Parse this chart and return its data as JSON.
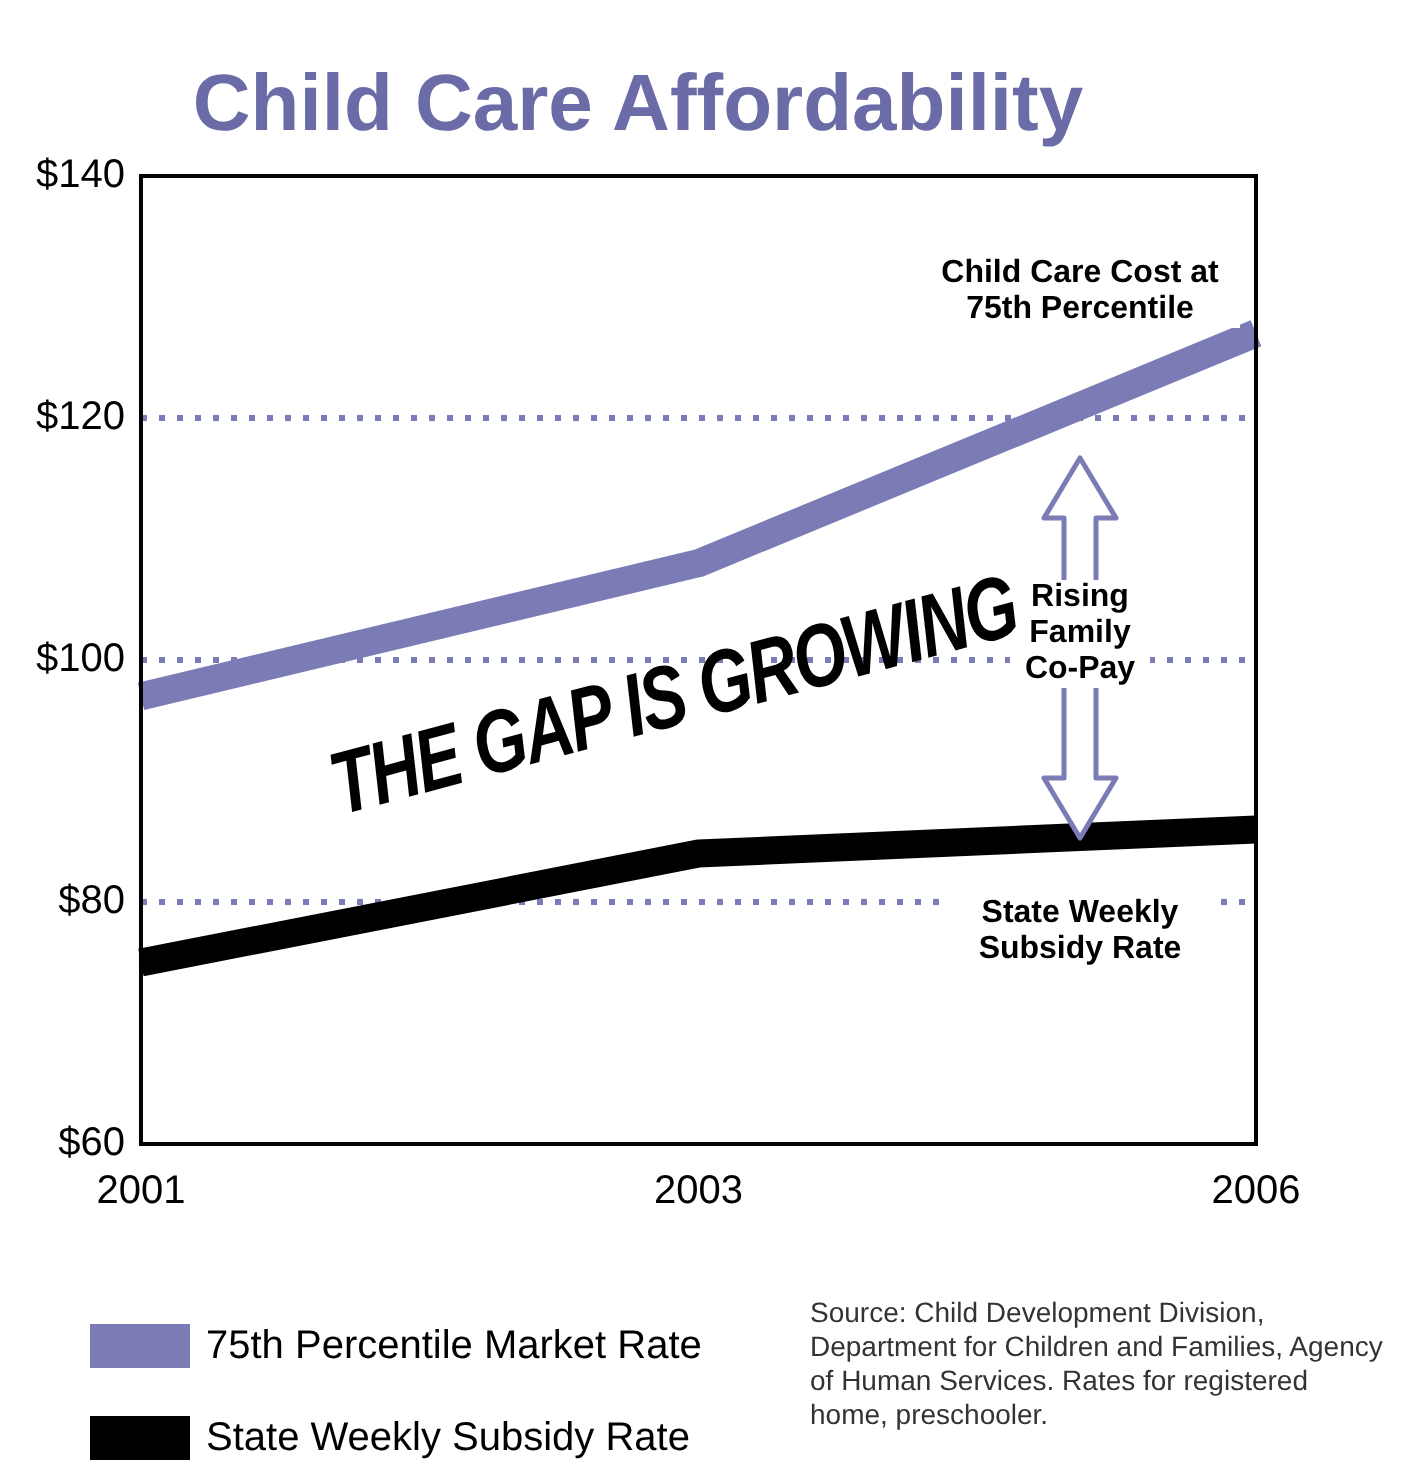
{
  "chart_data": {
    "type": "line",
    "title": "Child Care Affordability",
    "categories": [
      "2001",
      "2003",
      "2006"
    ],
    "series": [
      {
        "name": "75th Percentile Market Rate",
        "color": "#7b7bb5",
        "values": [
          97,
          108,
          127
        ]
      },
      {
        "name": "State Weekly Subsidy Rate",
        "color": "#000000",
        "values": [
          75,
          84,
          86
        ]
      }
    ],
    "ylim": [
      60,
      140
    ],
    "yticks": [
      {
        "value": 60,
        "label": "$60"
      },
      {
        "value": 80,
        "label": "$80"
      },
      {
        "value": 100,
        "label": "$100"
      },
      {
        "value": 120,
        "label": "$120"
      },
      {
        "value": 140,
        "label": "$140"
      }
    ],
    "grid": "y",
    "legend": "bottom",
    "marker": "none",
    "line_style": "solid",
    "annotations": [
      "Child Care Cost at 75th Percentile",
      "Rising Family Co-Pay",
      "THE GAP IS GROWING",
      "State Weekly Subsidy Rate",
      "Source: Child Development Division, Department for Children and Families, Agency of Human Services. Rates for registered home, preschooler."
    ]
  }
}
